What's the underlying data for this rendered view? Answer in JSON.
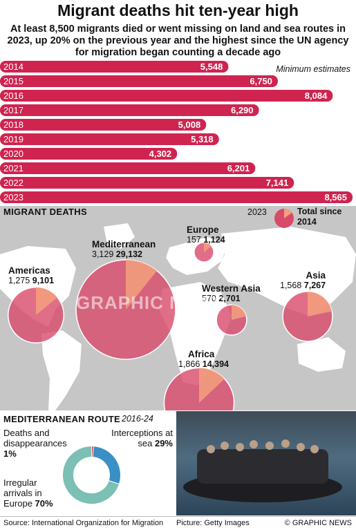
{
  "title": "Migrant deaths hit ten-year high",
  "subtitle": "At least 8,500 migrants died or went missing on land and sea routes in 2023, up 20% on the previous year and the highest since the UN agency for migration began counting a decade ago",
  "note": "Minimum estimates",
  "colors": {
    "bar": "#cf2450",
    "circle": "#d94a6a",
    "donut_blue": "#3a8fc4",
    "donut_teal": "#7cbfb4",
    "donut_red": "#c8283c"
  },
  "chart_data": [
    {
      "type": "bar",
      "orientation": "horizontal",
      "categories": [
        "2014",
        "2015",
        "2016",
        "2017",
        "2018",
        "2019",
        "2020",
        "2021",
        "2022",
        "2023"
      ],
      "values": [
        5548,
        6750,
        8084,
        6290,
        5008,
        5318,
        4302,
        6201,
        7141,
        8565
      ],
      "value_labels": [
        "5,548",
        "6,750",
        "8,084",
        "6,290",
        "5,008",
        "5,318",
        "4,302",
        "6,201",
        "7,141",
        "8,565"
      ]
    },
    {
      "type": "bubble-map",
      "title": "MIGRANT DEATHS",
      "legend": {
        "inner": "2023",
        "outer": "Total since 2014"
      },
      "regions": [
        {
          "name": "Europe",
          "value_2023": "157",
          "total": "1,124",
          "v2023": 157,
          "vtotal": 1124
        },
        {
          "name": "Mediterranean",
          "value_2023": "3,129",
          "total": "29,132",
          "v2023": 3129,
          "vtotal": 29132
        },
        {
          "name": "Americas",
          "value_2023": "1,275",
          "total": "9,101",
          "v2023": 1275,
          "vtotal": 9101
        },
        {
          "name": "Western Asia",
          "value_2023": "570",
          "total": "2,701",
          "v2023": 570,
          "vtotal": 2701
        },
        {
          "name": "Asia",
          "value_2023": "1,568",
          "total": "7,267",
          "v2023": 1568,
          "vtotal": 7267
        },
        {
          "name": "Africa",
          "value_2023": "1,866",
          "total": "14,394",
          "v2023": 1866,
          "vtotal": 14394
        }
      ]
    },
    {
      "type": "pie",
      "title": "MEDITERRANEAN ROUTE",
      "period": "2016-24",
      "slices": [
        {
          "label": "Deaths and disappearances",
          "pct_label": "1%",
          "value": 1
        },
        {
          "label": "Interceptions at sea",
          "pct_label": "29%",
          "value": 29
        },
        {
          "label": "Irregular arrivals in Europe",
          "pct_label": "70%",
          "value": 70
        }
      ]
    }
  ],
  "footer": {
    "source": "Source: International Organization for Migration",
    "picture": "Picture: Getty Images",
    "credit": "© GRAPHIC NEWS"
  },
  "watermark": "GRAPHIC NEWS"
}
